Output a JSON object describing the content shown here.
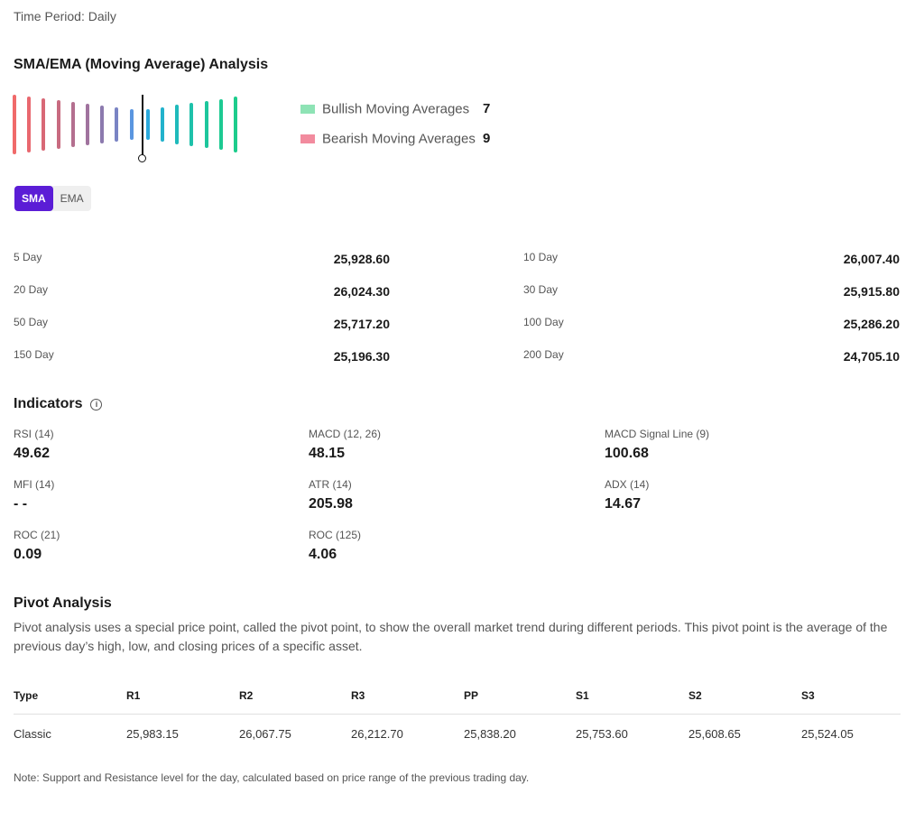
{
  "time_period": "Time Period: Daily",
  "sma_section": {
    "title": "SMA/EMA (Moving Average) Analysis",
    "bullish_label": "Bullish Moving Averages",
    "bullish_count": "7",
    "bearish_label": "Bearish Moving Averages",
    "bearish_count": "9",
    "bullish_color": "#8ee3b5",
    "bearish_color": "#f28b9e",
    "tabs": [
      "SMA",
      "EMA"
    ],
    "active_tab": "SMA"
  },
  "moving_averages": [
    {
      "label": "5 Day",
      "value": "25,928.60"
    },
    {
      "label": "10 Day",
      "value": "26,007.40"
    },
    {
      "label": "20 Day",
      "value": "26,024.30"
    },
    {
      "label": "30 Day",
      "value": "25,915.80"
    },
    {
      "label": "50 Day",
      "value": "25,717.20"
    },
    {
      "label": "100 Day",
      "value": "25,286.20"
    },
    {
      "label": "150 Day",
      "value": "25,196.30"
    },
    {
      "label": "200 Day",
      "value": "24,705.10"
    }
  ],
  "indicators": {
    "title": "Indicators",
    "items": [
      {
        "label": "RSI (14)",
        "value": "49.62"
      },
      {
        "label": "MACD (12, 26)",
        "value": "48.15"
      },
      {
        "label": "MACD Signal Line (9)",
        "value": "100.68"
      },
      {
        "label": "MFI (14)",
        "value": "- -"
      },
      {
        "label": "ATR (14)",
        "value": "205.98"
      },
      {
        "label": "ADX (14)",
        "value": "14.67"
      },
      {
        "label": "ROC (21)",
        "value": "0.09"
      },
      {
        "label": "ROC (125)",
        "value": "4.06"
      }
    ]
  },
  "pivot": {
    "title": "Pivot Analysis",
    "description": "Pivot analysis uses a special price point, called the pivot point, to show the overall market trend during different periods. This pivot point is the average of the previous day’s high, low, and closing prices of a specific asset.",
    "headers": [
      "Type",
      "R1",
      "R2",
      "R3",
      "PP",
      "S1",
      "S2",
      "S3"
    ],
    "rows": [
      [
        "Classic",
        "25,983.15",
        "26,067.75",
        "26,212.70",
        "25,838.20",
        "25,753.60",
        "25,608.65",
        "25,524.05"
      ]
    ],
    "note": "Note: Support and Resistance level for the day, calculated based on price range of the previous trading day."
  },
  "colors": {
    "accent": "#5b1dd6",
    "gauge": [
      "#f06a6a",
      "#e9686f",
      "#d86876",
      "#c86b80",
      "#b46f8f",
      "#a0739e",
      "#8c7aae",
      "#7a84c4",
      "#5a96e0",
      "#3aa3e6",
      "#2aa9dc",
      "#22b2cc",
      "#1fbabb",
      "#1ec1aa",
      "#1dc69c",
      "#1dca92",
      "#1dcc8c"
    ]
  }
}
